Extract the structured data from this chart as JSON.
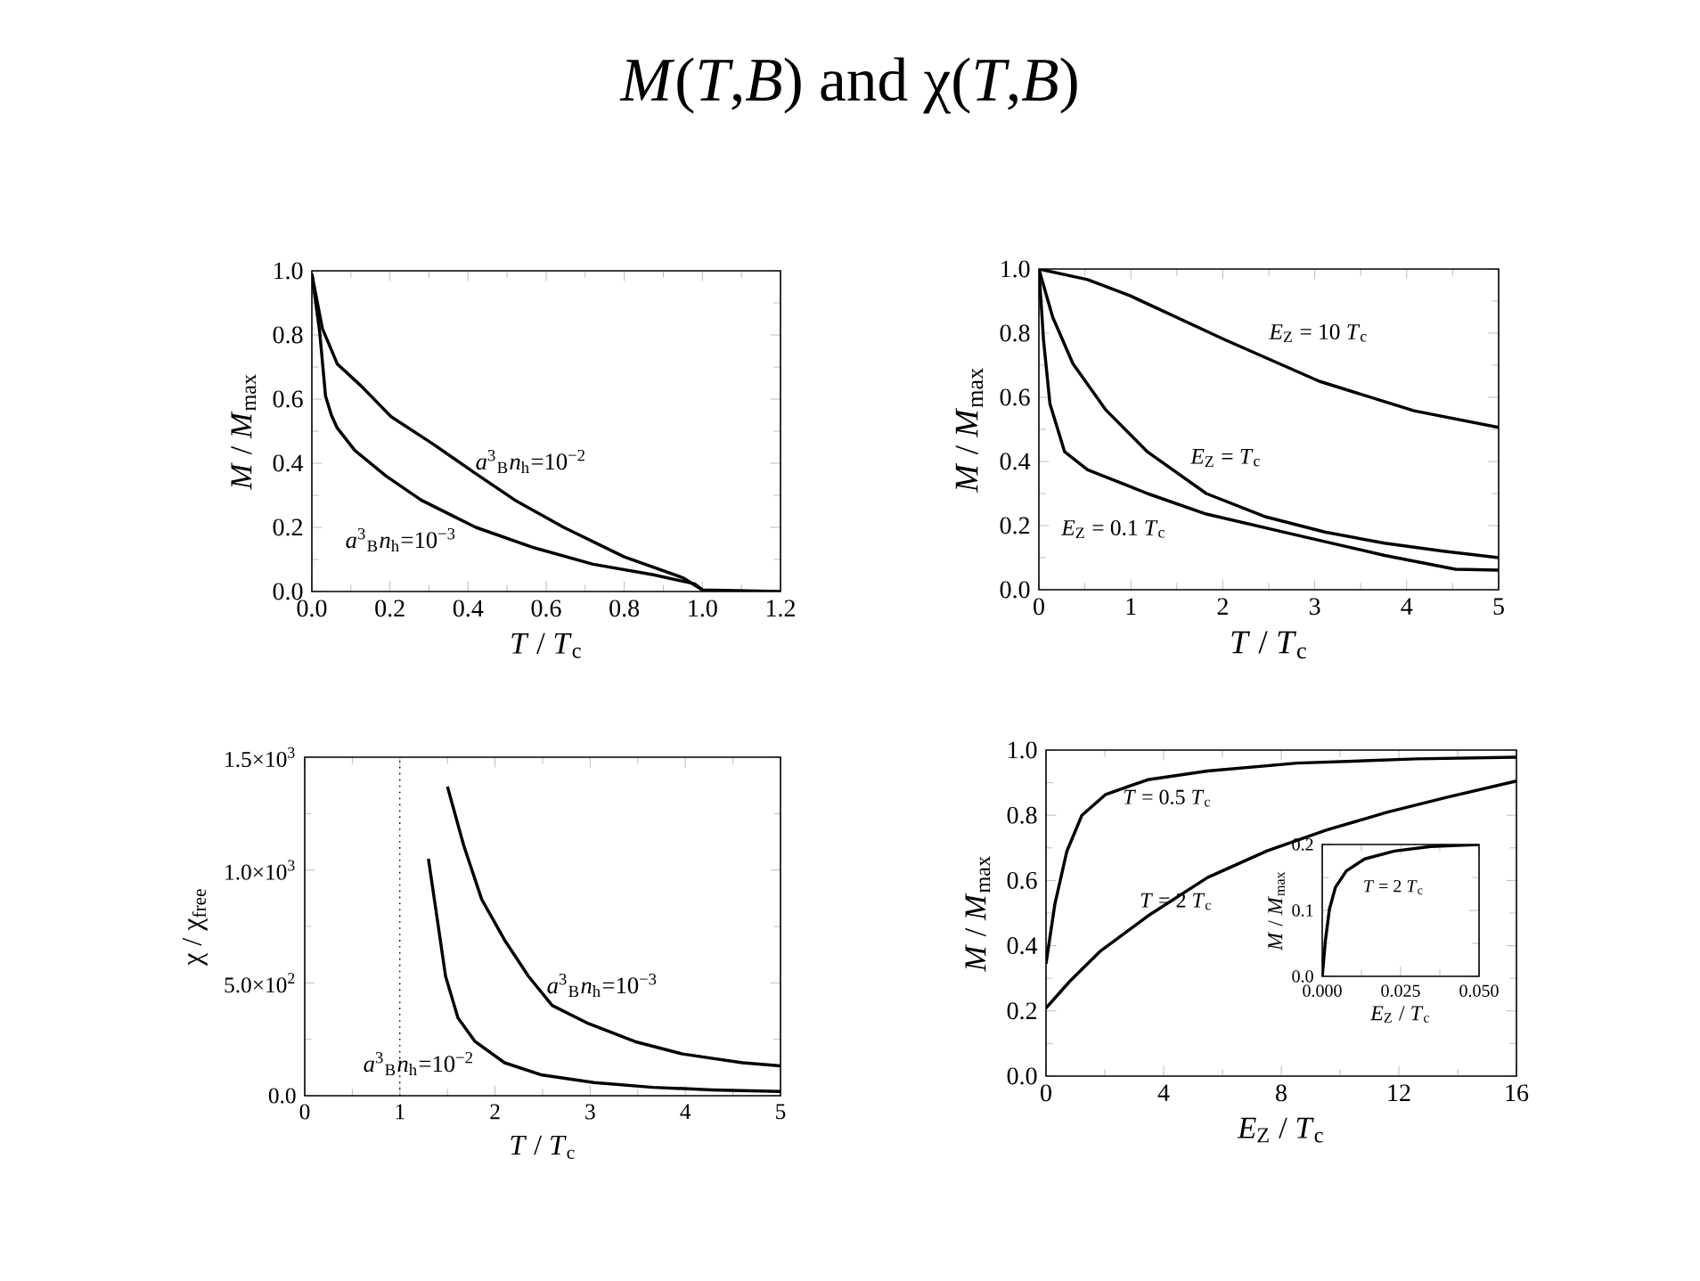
{
  "chart_data": [
    {
      "type": "line",
      "title": "*M*(*T*,*B*)  and  χ(*T*,*B*)",
      "xlabel": "*T* / *T*$_{c}$",
      "ylabel": "*M* / *M*$_{max}$",
      "xlim": [
        0,
        1.2
      ],
      "xticks": [
        {
          "value": 0,
          "label": "0.0"
        },
        0.2,
        0.4,
        0.6,
        0.8,
        {
          "value": 1,
          "label": "1.0"
        },
        1.2
      ],
      "ylim": [
        0,
        1
      ],
      "yticks": [
        {
          "value": 0,
          "label": "0.0"
        },
        0.2,
        0.4,
        0.6,
        0.8,
        {
          "value": 1,
          "label": "1.0"
        }
      ],
      "series": [
        {
          "name": "*a*$^{3}$$_{B}$*n*$_{h}$=10$^{−2}$",
          "color": "#000000",
          "x": [
            0,
            0.027,
            0.065,
            0.127,
            0.203,
            0.31,
            0.417,
            0.52,
            0.645,
            0.8,
            0.95,
            1.0,
            1.2
          ],
          "values": [
            0.99,
            0.82,
            0.71,
            0.64,
            0.545,
            0.46,
            0.37,
            0.285,
            0.2,
            0.108,
            0.043,
            0.005,
            0
          ]
        },
        {
          "name": "*a*$^{3}$$_{B}$*n*$_{h}$=10$^{−3}$",
          "color": "#000000",
          "x": [
            0,
            0.02,
            0.035,
            0.05,
            0.065,
            0.11,
            0.19,
            0.28,
            0.42,
            0.57,
            0.72,
            0.875,
            0.98,
            1.0
          ],
          "values": [
            0.99,
            0.81,
            0.61,
            0.55,
            0.51,
            0.44,
            0.36,
            0.285,
            0.2,
            0.136,
            0.085,
            0.052,
            0.024,
            0.005
          ]
        }
      ]
    },
    {
      "type": "line",
      "xlabel": "*T* / *T*$_{c}$",
      "ylabel": "*M* / *M*$_{max}$",
      "xlim": [
        0,
        5
      ],
      "xticks": [
        0,
        1,
        2,
        3,
        4,
        5
      ],
      "ylim": [
        0,
        1
      ],
      "yticks": [
        {
          "value": 0,
          "label": "0.0"
        },
        0.2,
        0.4,
        0.6,
        0.8,
        {
          "value": 1,
          "label": "1.0"
        }
      ],
      "series": [
        {
          "name": "*E*$_{Z}$ = 10 *T*$_{c}$",
          "color": "#000000",
          "x": [
            0,
            0.53,
            0.99,
            2.02,
            3.05,
            4.08,
            5
          ],
          "values": [
            1.0,
            0.967,
            0.917,
            0.78,
            0.65,
            0.558,
            0.506
          ]
        },
        {
          "name": "*E*$_{Z}$ = *T*$_{c}$",
          "color": "#000000",
          "x": [
            0,
            0.15,
            0.37,
            0.73,
            1.18,
            1.82,
            2.47,
            3.11,
            3.76,
            4.4,
            5
          ],
          "values": [
            1.0,
            0.85,
            0.705,
            0.56,
            0.43,
            0.3,
            0.227,
            0.18,
            0.145,
            0.12,
            0.1
          ]
        },
        {
          "name": "*E*$_{Z}$ = 0.1 *T*$_{c}$",
          "color": "#000000",
          "x": [
            0,
            0.05,
            0.12,
            0.28,
            0.53,
            1.18,
            1.82,
            2.79,
            3.76,
            4.53,
            5
          ],
          "values": [
            1.0,
            0.78,
            0.58,
            0.43,
            0.374,
            0.3,
            0.236,
            0.171,
            0.107,
            0.064,
            0.061
          ]
        }
      ]
    },
    {
      "type": "line",
      "xlabel": "*T* / *T*$_{c}$",
      "ylabel": "χ / χ$_{free}$",
      "xlim": [
        0,
        5
      ],
      "xticks": [
        0,
        1,
        2,
        3,
        4,
        5
      ],
      "ylim": [
        0,
        1500
      ],
      "yticks": [
        {
          "value": 0,
          "label": "0.0"
        },
        {
          "value": 500,
          "label": "5.0×10$^{2}$"
        },
        {
          "value": 1000,
          "label": "1.0×10$^{3}$"
        },
        {
          "value": 1500,
          "label": "1.5×10$^{3}$"
        }
      ],
      "series": [
        {
          "name": "*a*$^{3}$$_{B}$*n*$_{h}$=10$^{−3}$",
          "color": "#000000",
          "x": [
            1.5,
            1.67,
            1.86,
            2.1,
            2.35,
            2.6,
            2.98,
            3.47,
            3.97,
            4.6,
            5
          ],
          "values": [
            1370,
            1110,
            870,
            690,
            530,
            400,
            320,
            240,
            185,
            146,
            132
          ]
        },
        {
          "name": "*a*$^{3}$$_{B}$*n*$_{h}$=10$^{−2}$",
          "color": "#000000",
          "x": [
            1.3,
            1.39,
            1.48,
            1.61,
            1.79,
            2.1,
            2.48,
            3.04,
            3.66,
            4.28,
            5
          ],
          "values": [
            1050,
            790,
            530,
            345,
            240,
            146,
            93,
            58,
            37,
            26,
            19
          ]
        }
      ],
      "ref_lines": [
        {
          "axis": "x",
          "value": 1,
          "color": "#000000",
          "line_style": "dotted"
        }
      ]
    },
    {
      "type": "line",
      "xlabel": "*E*$_{Z}$ / *T*$_{c}$",
      "ylabel": "*M* / *M*$_{max}$",
      "xlim": [
        0,
        16
      ],
      "xticks": [
        0,
        4,
        8,
        12,
        16
      ],
      "ylim": [
        0,
        1
      ],
      "yticks": [
        {
          "value": 0,
          "label": "0.0"
        },
        0.2,
        0.4,
        0.6,
        0.8,
        {
          "value": 1,
          "label": "1.0"
        }
      ],
      "series": [
        {
          "name": "*T* = 0.5 *T*$_{c}$",
          "color": "#000000",
          "x": [
            0,
            0.3,
            0.71,
            1.22,
            2.03,
            3.46,
            5.49,
            8.54,
            12.6,
            16
          ],
          "values": [
            0.345,
            0.527,
            0.69,
            0.8,
            0.864,
            0.909,
            0.936,
            0.96,
            0.973,
            0.978
          ]
        },
        {
          "name": "*T* = 2 *T*$_{c}$",
          "color": "#000000",
          "x": [
            0,
            0.81,
            1.83,
            3.46,
            5.49,
            7.52,
            9.55,
            11.59,
            13.62,
            16
          ],
          "values": [
            0.209,
            0.291,
            0.382,
            0.491,
            0.609,
            0.691,
            0.755,
            0.809,
            0.855,
            0.905
          ]
        }
      ]
    },
    {
      "type": "line",
      "xlabel": "*E*$_{Z}$ / *T*$_{c}$",
      "ylabel": "*M* / *M*$_{max}$",
      "xlim": [
        0,
        0.05
      ],
      "xticks": [
        {
          "value": 0,
          "label": "0.000"
        },
        {
          "value": 0.025,
          "label": "0.025"
        },
        {
          "value": 0.05,
          "label": "0.050"
        }
      ],
      "ylim": [
        0,
        0.2
      ],
      "yticks": [
        {
          "value": 0,
          "label": "0.0"
        },
        0.1,
        0.2
      ],
      "series": [
        {
          "name": "*T* = 2 *T*$_{c}$",
          "color": "#000000",
          "x": [
            0,
            0.001,
            0.0023,
            0.0042,
            0.0077,
            0.0135,
            0.023,
            0.0346,
            0.05
          ],
          "values": [
            0,
            0.054,
            0.102,
            0.135,
            0.16,
            0.178,
            0.19,
            0.197,
            0.2
          ]
        }
      ]
    }
  ]
}
